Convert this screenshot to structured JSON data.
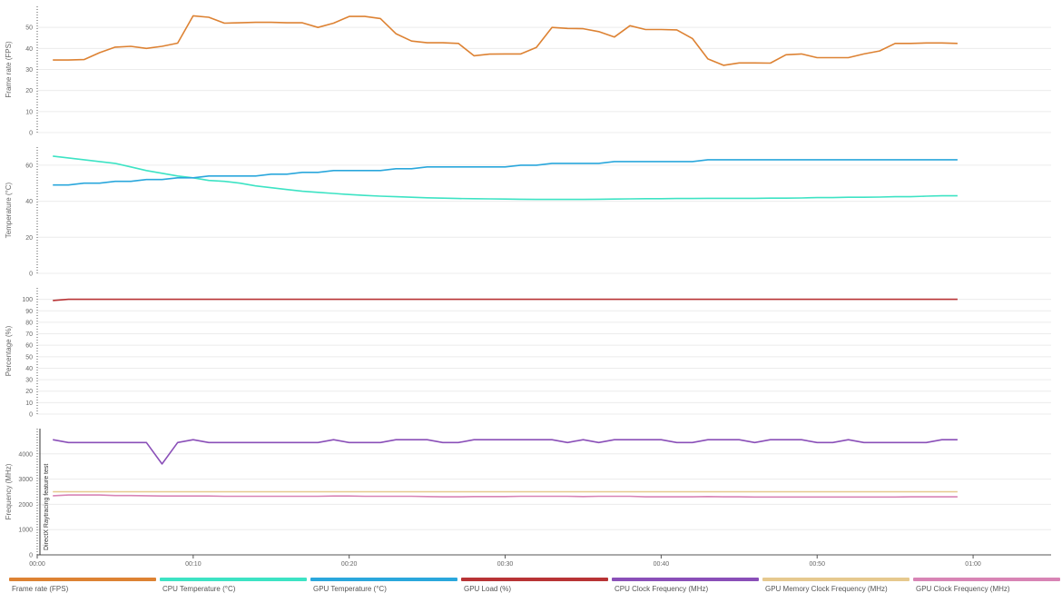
{
  "chart_data": {
    "type": "line",
    "x_unit": "seconds",
    "x": [
      1,
      2,
      3,
      4,
      5,
      6,
      7,
      8,
      9,
      10,
      11,
      12,
      13,
      14,
      15,
      16,
      17,
      18,
      19,
      20,
      21,
      22,
      23,
      24,
      25,
      26,
      27,
      28,
      29,
      30,
      31,
      32,
      33,
      34,
      35,
      36,
      37,
      38,
      39,
      40,
      41,
      42,
      43,
      44,
      45,
      46,
      47,
      48,
      49,
      50,
      51,
      52,
      53,
      54,
      55,
      56,
      57,
      58,
      59
    ],
    "xlim": [
      0,
      65
    ],
    "xticks": [
      "00:00",
      "00:10",
      "00:20",
      "00:30",
      "00:40",
      "00:50",
      "01:00"
    ],
    "xtick_values": [
      0,
      10,
      20,
      30,
      40,
      50,
      60
    ],
    "annotation": "DirectX Raytracing feature test",
    "panels": [
      {
        "ylabel": "Frame rate (FPS)",
        "ylim": [
          0,
          60
        ],
        "yticks": [
          0,
          10,
          20,
          30,
          40,
          50
        ],
        "series": [
          {
            "name": "Frame rate (FPS)",
            "color": "#dd8233",
            "values": [
              34.5,
              34.5,
              34.7,
              38,
              40.6,
              41,
              40,
              41,
              42.5,
              55.5,
              54.8,
              52,
              52.2,
              52.4,
              52.4,
              52.2,
              52.2,
              50,
              52,
              55.2,
              55.2,
              54.2,
              47,
              43.5,
              42.7,
              42.7,
              42.4,
              36.5,
              37.3,
              37.4,
              37.4,
              40.5,
              50,
              49.5,
              49.4,
              48,
              45.4,
              50.8,
              49,
              49,
              48.8,
              44.7,
              35,
              32,
              33.1,
              33.1,
              33,
              37,
              37.4,
              35.6,
              35.6,
              35.6,
              37.4,
              38.8,
              42.4,
              42.4,
              42.6,
              42.6,
              42.4
            ]
          }
        ]
      },
      {
        "ylabel": "Temperature (°C)",
        "ylim": [
          0,
          70
        ],
        "yticks": [
          0,
          20,
          40,
          60
        ],
        "series": [
          {
            "name": "CPU Temperature (°C)",
            "color": "#3de3c4",
            "values": [
              65,
              64,
              63,
              62,
              61,
              59,
              57,
              55.5,
              54,
              53,
              51.5,
              51,
              50,
              48.5,
              47.5,
              46.5,
              45.5,
              44.9,
              44.3,
              43.7,
              43.2,
              42.8,
              42.5,
              42.2,
              41.9,
              41.7,
              41.5,
              41.4,
              41.3,
              41.2,
              41.1,
              41,
              41,
              41,
              41,
              41.1,
              41.2,
              41.3,
              41.4,
              41.4,
              41.5,
              41.5,
              41.6,
              41.6,
              41.6,
              41.6,
              41.7,
              41.7,
              41.8,
              42,
              42,
              42.2,
              42.2,
              42.3,
              42.5,
              42.5,
              42.8,
              43,
              43
            ]
          },
          {
            "name": "GPU Temperature (°C)",
            "color": "#2aa7dc",
            "values": [
              49,
              49,
              50,
              50,
              51,
              51,
              52,
              52,
              53,
              53,
              54,
              54,
              54,
              54,
              55,
              55,
              56,
              56,
              57,
              57,
              57,
              57,
              58,
              58,
              59,
              59,
              59,
              59,
              59,
              59,
              60,
              60,
              61,
              61,
              61,
              61,
              62,
              62,
              62,
              62,
              62,
              62,
              63,
              63,
              63,
              63,
              63,
              63,
              63,
              63,
              63,
              63,
              63,
              63,
              63,
              63,
              63,
              63,
              63
            ]
          }
        ]
      },
      {
        "ylabel": "Percentage (%)",
        "ylim": [
          0,
          110
        ],
        "yticks": [
          0,
          10,
          20,
          30,
          40,
          50,
          60,
          70,
          80,
          90,
          100
        ],
        "series": [
          {
            "name": "GPU Load (%)",
            "color": "#b83335",
            "values": [
              99,
              100,
              100,
              100,
              100,
              100,
              100,
              100,
              100,
              100,
              100,
              100,
              100,
              100,
              100,
              100,
              100,
              100,
              100,
              100,
              100,
              100,
              100,
              100,
              100,
              100,
              100,
              100,
              100,
              100,
              100,
              100,
              100,
              100,
              100,
              100,
              100,
              100,
              100,
              100,
              100,
              100,
              100,
              100,
              100,
              100,
              100,
              100,
              100,
              100,
              100,
              100,
              100,
              100,
              100,
              100,
              100,
              100,
              100
            ]
          }
        ]
      },
      {
        "ylabel": "Frequency (MHz)",
        "ylim": [
          0,
          5000
        ],
        "yticks": [
          0,
          1000,
          2000,
          3000,
          4000
        ],
        "series": [
          {
            "name": "CPU Clock Frequency (MHz)",
            "color": "#8a4fb8",
            "values": [
              4560,
              4450,
              4450,
              4450,
              4450,
              4450,
              4450,
              3600,
              4450,
              4560,
              4450,
              4450,
              4450,
              4450,
              4450,
              4450,
              4450,
              4450,
              4560,
              4450,
              4450,
              4450,
              4560,
              4560,
              4560,
              4450,
              4450,
              4560,
              4560,
              4560,
              4560,
              4560,
              4560,
              4450,
              4560,
              4450,
              4560,
              4560,
              4560,
              4560,
              4450,
              4450,
              4560,
              4560,
              4560,
              4450,
              4560,
              4560,
              4560,
              4450,
              4450,
              4560,
              4450,
              4450,
              4450,
              4450,
              4450,
              4560,
              4560
            ]
          },
          {
            "name": "GPU Memory Clock Frequency (MHz)",
            "color": "#e6c98e",
            "values": [
              2500,
              2500,
              2500,
              2500,
              2500,
              2500,
              2500,
              2500,
              2500,
              2500,
              2500,
              2500,
              2500,
              2500,
              2500,
              2500,
              2500,
              2500,
              2500,
              2500,
              2500,
              2500,
              2500,
              2500,
              2500,
              2500,
              2500,
              2500,
              2500,
              2500,
              2500,
              2500,
              2500,
              2500,
              2500,
              2500,
              2500,
              2500,
              2500,
              2500,
              2500,
              2500,
              2500,
              2500,
              2500,
              2500,
              2500,
              2500,
              2500,
              2500,
              2500,
              2500,
              2500,
              2500,
              2500,
              2500,
              2500,
              2500,
              2500
            ]
          },
          {
            "name": "GPU Clock Frequency (MHz)",
            "color": "#d884b5",
            "values": [
              2340,
              2370,
              2370,
              2370,
              2350,
              2350,
              2340,
              2330,
              2330,
              2330,
              2330,
              2320,
              2320,
              2320,
              2320,
              2320,
              2320,
              2320,
              2330,
              2330,
              2320,
              2320,
              2320,
              2320,
              2310,
              2300,
              2300,
              2310,
              2310,
              2310,
              2320,
              2320,
              2320,
              2320,
              2310,
              2320,
              2320,
              2320,
              2300,
              2300,
              2300,
              2300,
              2310,
              2300,
              2300,
              2290,
              2290,
              2290,
              2290,
              2290,
              2290,
              2290,
              2290,
              2290,
              2290,
              2300,
              2300,
              2300,
              2300
            ]
          }
        ]
      }
    ]
  },
  "legend": [
    {
      "label": "Frame rate (FPS)",
      "color": "#dd8233"
    },
    {
      "label": "CPU Temperature (°C)",
      "color": "#3de3c4"
    },
    {
      "label": "GPU Temperature (°C)",
      "color": "#2aa7dc"
    },
    {
      "label": "GPU Load (%)",
      "color": "#b83335"
    },
    {
      "label": "CPU Clock Frequency (MHz)",
      "color": "#8a4fb8"
    },
    {
      "label": "GPU Memory Clock Frequency (MHz)",
      "color": "#e6c98e"
    },
    {
      "label": "GPU Clock Frequency (MHz)",
      "color": "#d884b5"
    }
  ]
}
